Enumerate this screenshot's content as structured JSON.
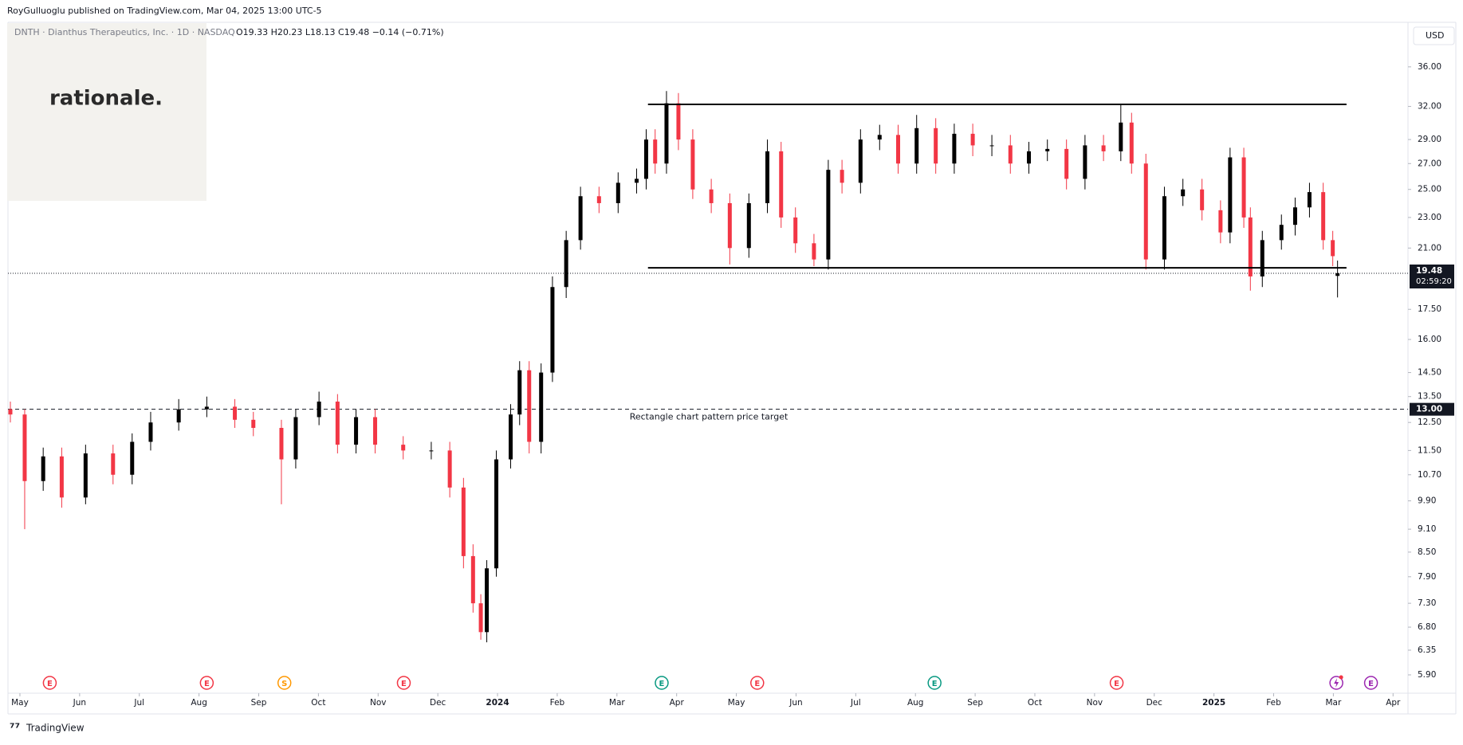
{
  "header": {
    "published": "RoyGulluoglu published on TradingView.com, Mar 04, 2025 13:00 UTC-5",
    "symbol": "DNTH · Dianthus Therapeutics, Inc. · 1D · NASDAQ",
    "ohlc": "O19.33 H20.23 L18.13 C19.48 −0.14 (−0.71%)",
    "logo": "rationale.",
    "currency": "USD",
    "footer": "TradingView"
  },
  "chart_data": {
    "type": "candlestick",
    "log_scale": true,
    "up_color": "#000000",
    "down_color": "#f23645",
    "xlim": [
      -0.2,
      23.25
    ],
    "ylim": [
      5.6,
      41
    ],
    "xticks": [
      {
        "value": 0,
        "label": "May"
      },
      {
        "value": 1,
        "label": "Jun"
      },
      {
        "value": 2,
        "label": "Jul"
      },
      {
        "value": 3,
        "label": "Aug"
      },
      {
        "value": 4,
        "label": "Sep"
      },
      {
        "value": 5,
        "label": "Oct"
      },
      {
        "value": 6,
        "label": "Nov"
      },
      {
        "value": 7,
        "label": "Dec"
      },
      {
        "value": 8,
        "label": "2024"
      },
      {
        "value": 9,
        "label": "Feb"
      },
      {
        "value": 10,
        "label": "Mar"
      },
      {
        "value": 11,
        "label": "Apr"
      },
      {
        "value": 12,
        "label": "May"
      },
      {
        "value": 13,
        "label": "Jun"
      },
      {
        "value": 14,
        "label": "Jul"
      },
      {
        "value": 15,
        "label": "Aug"
      },
      {
        "value": 16,
        "label": "Sep"
      },
      {
        "value": 17,
        "label": "Oct"
      },
      {
        "value": 18,
        "label": "Nov"
      },
      {
        "value": 19,
        "label": "Dec"
      },
      {
        "value": 20,
        "label": "2025"
      },
      {
        "value": 21,
        "label": "Feb"
      },
      {
        "value": 22,
        "label": "Mar"
      },
      {
        "value": 23,
        "label": "Apr"
      }
    ],
    "yticks": [
      {
        "value": 36,
        "label": "36.00"
      },
      {
        "value": 32,
        "label": "32.00"
      },
      {
        "value": 29,
        "label": "29.00"
      },
      {
        "value": 27,
        "label": "27.00"
      },
      {
        "value": 25,
        "label": "25.00"
      },
      {
        "value": 23,
        "label": "23.00"
      },
      {
        "value": 21,
        "label": "21.00"
      },
      {
        "value": 17.5,
        "label": "17.50"
      },
      {
        "value": 16,
        "label": "16.00"
      },
      {
        "value": 14.5,
        "label": "14.50"
      },
      {
        "value": 13.5,
        "label": "13.50"
      },
      {
        "value": 12.5,
        "label": "12.50"
      },
      {
        "value": 11.5,
        "label": "11.50"
      },
      {
        "value": 10.7,
        "label": "10.70"
      },
      {
        "value": 9.9,
        "label": "9.90"
      },
      {
        "value": 9.1,
        "label": "9.10"
      },
      {
        "value": 8.5,
        "label": "8.50"
      },
      {
        "value": 7.9,
        "label": "7.90"
      },
      {
        "value": 7.3,
        "label": "7.30"
      },
      {
        "value": 6.8,
        "label": "6.80"
      },
      {
        "value": 6.35,
        "label": "6.35"
      },
      {
        "value": 5.9,
        "label": "5.90"
      }
    ],
    "x": [
      -0.16,
      0.08,
      0.39,
      0.7,
      1.1,
      1.56,
      1.88,
      2.19,
      2.66,
      3.13,
      3.6,
      3.91,
      4.38,
      4.62,
      5.01,
      5.32,
      5.63,
      5.95,
      6.42,
      6.89,
      7.2,
      7.43,
      7.59,
      7.72,
      7.82,
      7.98,
      8.22,
      8.37,
      8.53,
      8.73,
      8.92,
      9.15,
      9.39,
      9.7,
      10.02,
      10.33,
      10.49,
      10.64,
      10.83,
      11.03,
      11.27,
      11.58,
      11.89,
      12.21,
      12.52,
      12.75,
      12.99,
      13.3,
      13.54,
      13.77,
      14.08,
      14.4,
      14.71,
      15.02,
      15.34,
      15.65,
      15.96,
      16.28,
      16.59,
      16.9,
      17.21,
      17.53,
      17.84,
      18.15,
      18.44,
      18.62,
      18.86,
      19.17,
      19.48,
      19.8,
      20.11,
      20.27,
      20.5,
      20.61,
      20.81,
      21.13,
      21.36,
      21.6,
      21.83,
      21.99,
      22.07
    ],
    "open": [
      13.0,
      12.8,
      10.5,
      11.3,
      10.0,
      11.4,
      10.7,
      11.8,
      12.5,
      13.0,
      13.1,
      12.6,
      12.3,
      11.2,
      12.7,
      13.3,
      11.7,
      12.7,
      11.7,
      11.5,
      11.5,
      10.3,
      8.4,
      7.3,
      6.7,
      8.1,
      11.2,
      12.8,
      14.6,
      11.8,
      14.5,
      18.7,
      21.5,
      24.5,
      24.0,
      25.5,
      25.8,
      29.0,
      27.0,
      32.3,
      29.0,
      25.0,
      24.0,
      21.0,
      24.0,
      28.0,
      23.0,
      21.3,
      20.3,
      26.5,
      25.5,
      29.0,
      29.4,
      27.0,
      30.0,
      27.0,
      29.5,
      28.5,
      28.5,
      27.0,
      28.0,
      28.2,
      25.8,
      28.5,
      28.0,
      30.5,
      27.0,
      20.3,
      24.5,
      25.0,
      23.5,
      22.0,
      27.5,
      23.0,
      19.3,
      21.5,
      22.5,
      23.7,
      24.8,
      21.5,
      19.33
    ],
    "high": [
      13.3,
      13.0,
      11.6,
      11.6,
      11.7,
      11.7,
      12.1,
      12.9,
      13.4,
      13.5,
      13.4,
      12.9,
      12.6,
      13.0,
      13.7,
      13.6,
      13.0,
      13.0,
      12.0,
      11.8,
      11.8,
      10.6,
      8.7,
      7.5,
      8.3,
      11.5,
      13.2,
      15.0,
      15.0,
      14.9,
      19.3,
      22.1,
      25.2,
      25.2,
      26.3,
      26.6,
      29.9,
      29.9,
      33.5,
      33.3,
      29.9,
      25.8,
      24.7,
      24.7,
      29.0,
      28.8,
      23.7,
      21.9,
      27.3,
      27.3,
      29.9,
      30.3,
      30.3,
      31.2,
      30.9,
      30.4,
      30.4,
      29.4,
      29.4,
      28.8,
      29.0,
      29.0,
      29.4,
      29.4,
      32.2,
      31.4,
      27.8,
      25.2,
      25.8,
      25.8,
      24.2,
      28.3,
      28.3,
      23.7,
      22.1,
      23.2,
      24.4,
      25.5,
      25.5,
      22.1,
      20.23
    ],
    "low": [
      12.5,
      9.1,
      10.2,
      9.7,
      9.8,
      10.4,
      10.4,
      11.5,
      12.2,
      12.7,
      12.3,
      12.0,
      9.8,
      10.9,
      12.4,
      11.4,
      11.4,
      11.4,
      11.2,
      11.2,
      10.0,
      8.1,
      7.1,
      6.55,
      6.5,
      7.9,
      10.9,
      12.4,
      11.4,
      11.4,
      14.1,
      18.1,
      20.9,
      23.3,
      23.3,
      24.7,
      25.0,
      26.2,
      26.2,
      28.1,
      24.3,
      23.3,
      20.0,
      20.4,
      23.3,
      22.3,
      20.7,
      19.9,
      19.7,
      24.7,
      24.7,
      28.1,
      26.2,
      26.2,
      26.2,
      26.2,
      27.6,
      27.6,
      26.2,
      26.2,
      27.2,
      25.0,
      25.0,
      27.2,
      27.2,
      26.2,
      19.7,
      19.7,
      23.8,
      22.8,
      21.3,
      21.3,
      22.3,
      18.5,
      18.7,
      20.9,
      21.8,
      23.0,
      20.9,
      19.9,
      18.13
    ],
    "close": [
      12.8,
      10.5,
      11.3,
      10.0,
      11.4,
      10.7,
      11.8,
      12.5,
      13.0,
      13.1,
      12.6,
      12.3,
      11.2,
      12.7,
      13.3,
      11.7,
      12.7,
      11.7,
      11.5,
      11.5,
      10.3,
      8.4,
      7.3,
      6.7,
      8.1,
      11.2,
      12.8,
      14.6,
      11.8,
      14.5,
      18.7,
      21.5,
      24.5,
      24.0,
      25.5,
      25.8,
      29.0,
      27.0,
      32.3,
      29.0,
      25.0,
      24.0,
      21.0,
      24.0,
      28.0,
      23.0,
      21.3,
      20.3,
      26.5,
      25.5,
      29.0,
      29.4,
      27.0,
      30.0,
      27.0,
      29.5,
      28.5,
      28.5,
      27.0,
      28.0,
      28.2,
      25.8,
      28.5,
      28.0,
      30.5,
      27.0,
      20.3,
      24.5,
      25.0,
      23.5,
      22.0,
      27.5,
      23.0,
      19.3,
      21.5,
      22.5,
      23.7,
      24.8,
      21.5,
      20.5,
      19.48
    ],
    "rectangle": {
      "top": 32.2,
      "bottom": 19.8,
      "x": [
        10.52,
        22.22
      ]
    },
    "target": {
      "value": 13.0,
      "label": "13.00",
      "text": "Rectangle chart pattern price target"
    },
    "last_price": {
      "value": 19.48,
      "label": "19.48",
      "countdown": "02:59:20"
    },
    "events": [
      {
        "x": 0.5,
        "label": "E",
        "color": "#f23645"
      },
      {
        "x": 3.13,
        "label": "E",
        "color": "#f23645"
      },
      {
        "x": 4.43,
        "label": "S",
        "color": "#ff9800"
      },
      {
        "x": 6.43,
        "label": "E",
        "color": "#f23645"
      },
      {
        "x": 10.75,
        "label": "E",
        "color": "#089981"
      },
      {
        "x": 12.35,
        "label": "E",
        "color": "#f23645"
      },
      {
        "x": 15.32,
        "label": "E",
        "color": "#089981"
      },
      {
        "x": 18.37,
        "label": "E",
        "color": "#f23645"
      },
      {
        "x": 22.63,
        "label": "E",
        "color": "#9c27b0"
      }
    ]
  }
}
